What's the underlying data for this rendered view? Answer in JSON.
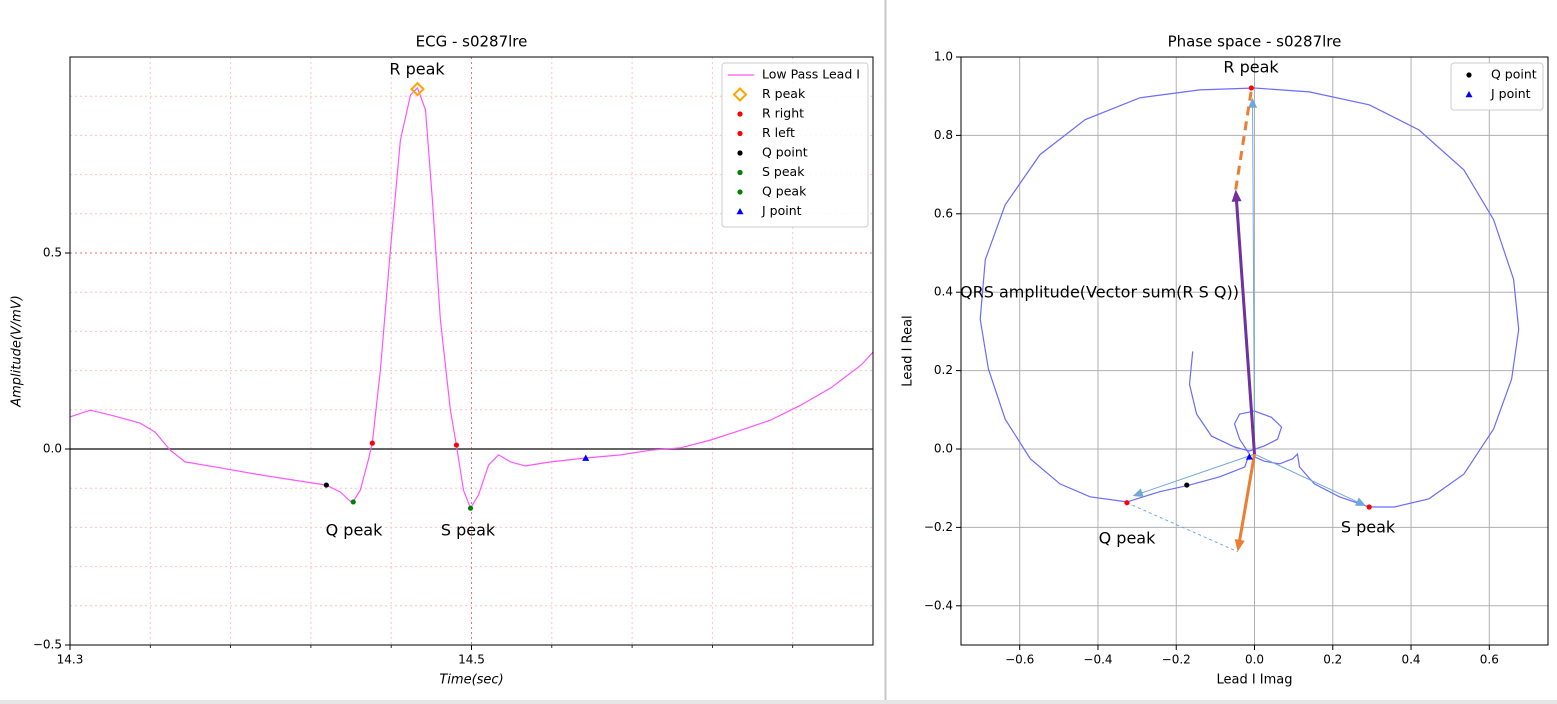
{
  "chart_data": [
    {
      "type": "line",
      "title": "ECG - s0287lre",
      "x_label": "Time(sec)",
      "y_label": "Amplitude(V/mV)",
      "xlim": [
        14.3,
        14.7
      ],
      "ylim": [
        -0.5,
        1.0
      ],
      "xticks": [
        14.3,
        14.5
      ],
      "yticks": [
        {
          "value": -0.5,
          "label": "−0.5"
        },
        {
          "value": 0,
          "label": "0.0"
        },
        0.5
      ],
      "x_minor_ticks": [
        14.34,
        14.38,
        14.42,
        14.46,
        14.54,
        14.58,
        14.62,
        14.66
      ],
      "y_minor_ticks": [
        -0.4,
        -0.3,
        -0.2,
        -0.1,
        0.1,
        0.2,
        0.3,
        0.4,
        0.6,
        0.7,
        0.8,
        0.9
      ],
      "grid": true,
      "grid_style": "dotted",
      "grid_color": "#ffc4c4",
      "major_grid_color": "#f07070",
      "zero_line": true,
      "legend": "upper right",
      "series": [
        {
          "name": "Low Pass Lead I",
          "color": "#ff55ff",
          "marker": "line",
          "x": [
            14.3,
            14.31,
            14.32,
            14.3349,
            14.3424,
            14.3499,
            14.3574,
            14.3748,
            14.3948,
            14.4147,
            14.4277,
            14.4347,
            14.4406,
            14.4446,
            14.4486,
            14.4506,
            14.4546,
            14.4596,
            14.4646,
            14.4696,
            14.4731,
            14.4771,
            14.4805,
            14.4845,
            14.4895,
            14.4925,
            14.496,
            14.4995,
            14.5035,
            14.5085,
            14.5135,
            14.5195,
            14.5269,
            14.5394,
            14.5569,
            14.5743,
            14.5893,
            14.6042,
            14.6192,
            14.6342,
            14.6491,
            14.6641,
            14.6791,
            14.694,
            14.7
          ],
          "values": [
            0.082,
            0.099,
            0.087,
            0.066,
            0.043,
            -0.003,
            -0.033,
            -0.048,
            -0.066,
            -0.082,
            -0.092,
            -0.11,
            -0.138,
            -0.105,
            -0.028,
            0.015,
            0.202,
            0.508,
            0.788,
            0.903,
            0.921,
            0.865,
            0.635,
            0.329,
            0.099,
            0.01,
            -0.105,
            -0.151,
            -0.117,
            -0.041,
            -0.015,
            -0.033,
            -0.043,
            -0.033,
            -0.023,
            -0.015,
            -0.003,
            0.003,
            0.023,
            0.048,
            0.074,
            0.112,
            0.156,
            0.214,
            0.247
          ]
        },
        {
          "name": "R peak",
          "color": "#ffa500",
          "marker": "diamond",
          "x": [
            14.4731
          ],
          "values": [
            0.918
          ]
        },
        {
          "name": "R right",
          "color": "#ff0000",
          "marker": "dot",
          "x": [
            14.4506
          ],
          "values": [
            0.015
          ]
        },
        {
          "name": "R left",
          "color": "#ff0000",
          "marker": "dot",
          "x": [
            14.4925
          ],
          "values": [
            0.01
          ]
        },
        {
          "name": "Q point",
          "color": "#000000",
          "marker": "dot",
          "x": [
            14.4277
          ],
          "values": [
            -0.092
          ]
        },
        {
          "name": "S peak",
          "color": "#008000",
          "marker": "dot",
          "x": [
            14.4995
          ],
          "values": [
            -0.151
          ]
        },
        {
          "name": "Q peak",
          "color": "#008000",
          "marker": "dot",
          "x": [
            14.4411
          ],
          "values": [
            -0.135
          ]
        },
        {
          "name": "J point",
          "color": "#0000ff",
          "marker": "triangle",
          "x": [
            14.5569
          ],
          "values": [
            -0.023
          ]
        }
      ],
      "vectors": [],
      "annotations": [
        {
          "text": "R peak"
        },
        {
          "text": "Q peak"
        },
        {
          "text": "S peak"
        }
      ]
    },
    {
      "type": "line",
      "title": "Phase space - s0287lre",
      "x_label": "Lead I Imag",
      "y_label": "Lead I Real",
      "xlim": [
        -0.75,
        0.75
      ],
      "ylim": [
        -0.5,
        1.0
      ],
      "xticks": [
        {
          "value": -0.6,
          "label": "−0.6"
        },
        {
          "value": -0.4,
          "label": "−0.4"
        },
        {
          "value": -0.2,
          "label": "−0.2"
        },
        {
          "value": 0,
          "label": "0.0"
        },
        0.2,
        0.4,
        0.6
      ],
      "yticks": [
        {
          "value": -0.4,
          "label": "−0.4"
        },
        {
          "value": -0.2,
          "label": "−0.2"
        },
        {
          "value": 0,
          "label": "0.0"
        },
        0.2,
        0.4,
        0.6,
        0.8,
        {
          "value": 1.0,
          "label": "1.0"
        }
      ],
      "x_minor_ticks": [],
      "y_minor_ticks": [],
      "grid": true,
      "grid_style": "solid",
      "grid_color": "#b0b0b0",
      "major_grid_color": "#b0b0b0",
      "zero_line": false,
      "legend": "upper right",
      "series": [
        {
          "color": "#6b6bff",
          "marker": "line",
          "x": [
            -0.158,
            -0.166,
            -0.148,
            -0.11,
            -0.051,
            -0.013,
            0.025,
            0.059,
            0.069,
            0.043,
            0.0,
            -0.038,
            -0.051,
            -0.038,
            -0.013,
            -0.025,
            -0.089,
            -0.166,
            -0.242,
            -0.326,
            -0.42,
            -0.497,
            -0.573,
            -0.637,
            -0.68,
            -0.701,
            -0.688,
            -0.637,
            -0.548,
            -0.433,
            -0.293,
            -0.14,
            0.0,
            0.14,
            0.293,
            0.42,
            0.535,
            0.611,
            0.662,
            0.675,
            0.657,
            0.611,
            0.535,
            0.446,
            0.357,
            0.293,
            0.217,
            0.153,
            0.115,
            0.11,
            0.097,
            0.064,
            0.025,
            0.0
          ],
          "values": [
            0.249,
            0.165,
            0.089,
            0.033,
            0.005,
            -0.005,
            0.008,
            0.025,
            0.056,
            0.081,
            0.097,
            0.089,
            0.064,
            0.025,
            -0.013,
            -0.046,
            -0.071,
            -0.092,
            -0.109,
            -0.135,
            -0.122,
            -0.089,
            -0.025,
            0.076,
            0.204,
            0.331,
            0.483,
            0.623,
            0.751,
            0.84,
            0.896,
            0.916,
            0.921,
            0.911,
            0.878,
            0.814,
            0.712,
            0.585,
            0.433,
            0.305,
            0.178,
            0.051,
            -0.064,
            -0.127,
            -0.148,
            -0.148,
            -0.122,
            -0.089,
            -0.046,
            -0.013,
            -0.025,
            -0.038,
            -0.031,
            -0.02
          ]
        },
        {
          "color": "#ff0000",
          "marker": "dot",
          "x": [
            -0.008,
            -0.326,
            0.293
          ],
          "values": [
            0.921,
            -0.137,
            -0.148
          ]
        },
        {
          "name": "Q point",
          "color": "#000000",
          "marker": "dot",
          "x": [
            -0.173
          ],
          "values": [
            -0.092
          ]
        },
        {
          "name": "J point",
          "color": "#0000ff",
          "marker": "triangle",
          "x": [
            -0.013
          ],
          "values": [
            -0.02
          ]
        }
      ],
      "vectors": [
        {
          "color": "#6fa8dc",
          "width": 1,
          "head": true,
          "x": [
            0,
            -0.005
          ],
          "y": [
            -0.013,
            0.896
          ]
        },
        {
          "color": "#6fa8dc",
          "width": 1,
          "head": true,
          "x": [
            0,
            -0.311
          ],
          "y": [
            -0.013,
            -0.12
          ]
        },
        {
          "color": "#6fa8dc",
          "width": 1,
          "head": true,
          "x": [
            0,
            0.285
          ],
          "y": [
            -0.013,
            -0.145
          ]
        },
        {
          "color": "#ed7d31",
          "width": 3,
          "head": true,
          "x": [
            0,
            -0.043
          ],
          "y": [
            -0.013,
            -0.262
          ]
        },
        {
          "color": "#7030a0",
          "width": 3,
          "head": true,
          "x": [
            0,
            -0.048
          ],
          "y": [
            -0.013,
            0.662
          ]
        },
        {
          "color": "#ed7d31",
          "width": 3,
          "head": false,
          "dash": "9,6",
          "x": [
            -0.048,
            -0.008
          ],
          "y": [
            0.662,
            0.916
          ]
        },
        {
          "color": "#6fa8dc",
          "width": 1,
          "head": false,
          "dash": "3,3",
          "x": [
            -0.326,
            -0.043
          ],
          "y": [
            -0.137,
            -0.262
          ]
        }
      ],
      "annotations": [
        {
          "text": "R peak"
        },
        {
          "text": "Q peak"
        },
        {
          "text": "S peak"
        },
        {
          "text": "QRS amplitude(Vector sum(R S Q))"
        }
      ]
    }
  ]
}
